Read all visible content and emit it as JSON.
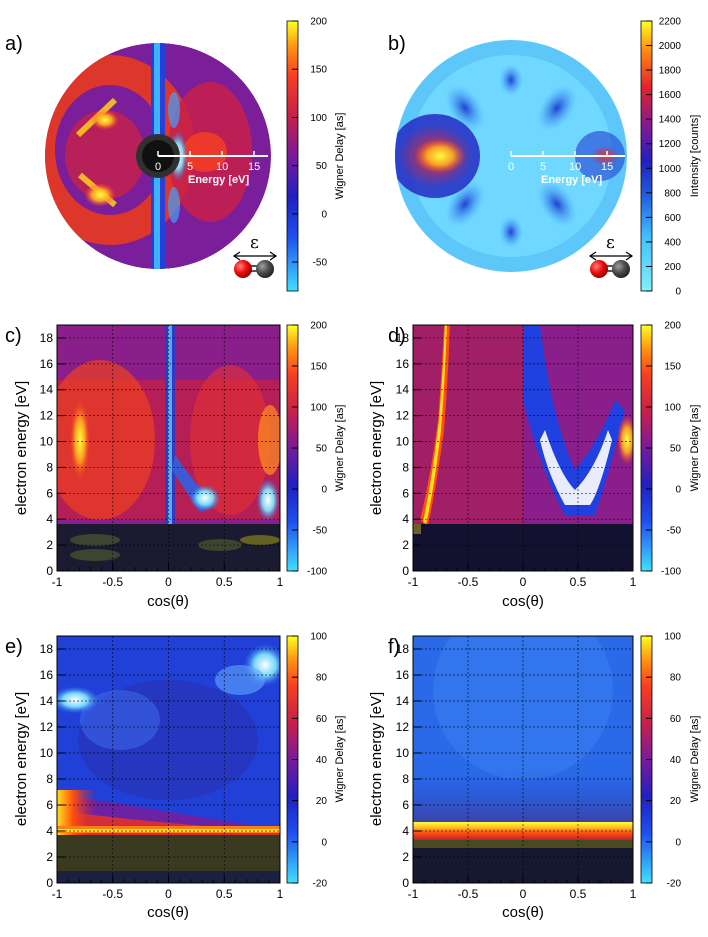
{
  "chart_data": [
    {
      "id": "a",
      "panel_label": "a)",
      "type": "heatmap",
      "projection": "polar",
      "colorbar": {
        "label": "Wigner Delay [as]",
        "ticks": [
          "-50",
          "0",
          "50",
          "100",
          "150",
          "200"
        ],
        "min": -80,
        "max": 200
      },
      "energy_axis": {
        "label": "Energy [eV]",
        "ticks": [
          "0",
          "5",
          "10",
          "15"
        ]
      },
      "polarization_label": "ε"
    },
    {
      "id": "b",
      "panel_label": "b)",
      "type": "heatmap",
      "projection": "polar",
      "colorbar": {
        "label": "Intensity [counts]",
        "ticks": [
          "0",
          "200",
          "400",
          "600",
          "800",
          "1000",
          "1200",
          "1400",
          "1600",
          "1800",
          "2000",
          "2200"
        ],
        "min": 0,
        "max": 2200
      },
      "energy_axis": {
        "label": "Energy [eV]",
        "ticks": [
          "0",
          "5",
          "10",
          "15"
        ]
      },
      "polarization_label": "ε"
    },
    {
      "id": "c",
      "panel_label": "c)",
      "type": "heatmap",
      "xlabel": "cos(θ)",
      "ylabel": "electron energy [eV]",
      "xlim": [
        -1,
        1
      ],
      "ylim": [
        0,
        19
      ],
      "xticks": [
        "-1",
        "-0.5",
        "0",
        "0.5",
        "1"
      ],
      "yticks": [
        "0",
        "2",
        "4",
        "6",
        "8",
        "10",
        "12",
        "14",
        "16",
        "18"
      ],
      "colorbar": {
        "label": "Wigner Delay [as]",
        "ticks": [
          "-100",
          "-50",
          "0",
          "50",
          "100",
          "150",
          "200"
        ],
        "min": -100,
        "max": 200
      }
    },
    {
      "id": "d",
      "panel_label": "d)",
      "type": "heatmap",
      "xlabel": "cos(θ)",
      "ylabel": "electron energy [eV]",
      "xlim": [
        -1,
        1
      ],
      "ylim": [
        0,
        19
      ],
      "xticks": [
        "-1",
        "-0.5",
        "0",
        "0.5",
        "1"
      ],
      "yticks": [
        "0",
        "2",
        "4",
        "6",
        "8",
        "10",
        "12",
        "14",
        "16",
        "18"
      ],
      "colorbar": {
        "label": "Wigner Delay [as]",
        "ticks": [
          "-100",
          "-50",
          "0",
          "50",
          "100",
          "150",
          "200"
        ],
        "min": -100,
        "max": 200
      }
    },
    {
      "id": "e",
      "panel_label": "e)",
      "type": "heatmap",
      "xlabel": "cos(θ)",
      "ylabel": "electron energy [eV]",
      "xlim": [
        -1,
        1
      ],
      "ylim": [
        0,
        19
      ],
      "xticks": [
        "-1",
        "-0.5",
        "0",
        "0.5",
        "1"
      ],
      "yticks": [
        "0",
        "2",
        "4",
        "6",
        "8",
        "10",
        "12",
        "14",
        "16",
        "18"
      ],
      "colorbar": {
        "label": "Wigner Delay [as]",
        "ticks": [
          "-20",
          "0",
          "20",
          "40",
          "60",
          "80",
          "100"
        ],
        "min": -20,
        "max": 100
      }
    },
    {
      "id": "f",
      "panel_label": "f)",
      "type": "heatmap",
      "xlabel": "cos(θ)",
      "ylabel": "electron energy [eV]",
      "xlim": [
        -1,
        1
      ],
      "ylim": [
        0,
        19
      ],
      "xticks": [
        "-1",
        "-0.5",
        "0",
        "0.5",
        "1"
      ],
      "yticks": [
        "0",
        "2",
        "4",
        "6",
        "8",
        "10",
        "12",
        "14",
        "16",
        "18"
      ],
      "colorbar": {
        "label": "Wigner Delay [as]",
        "ticks": [
          "-20",
          "0",
          "20",
          "40",
          "60",
          "80",
          "100"
        ],
        "min": -20,
        "max": 100
      }
    }
  ]
}
